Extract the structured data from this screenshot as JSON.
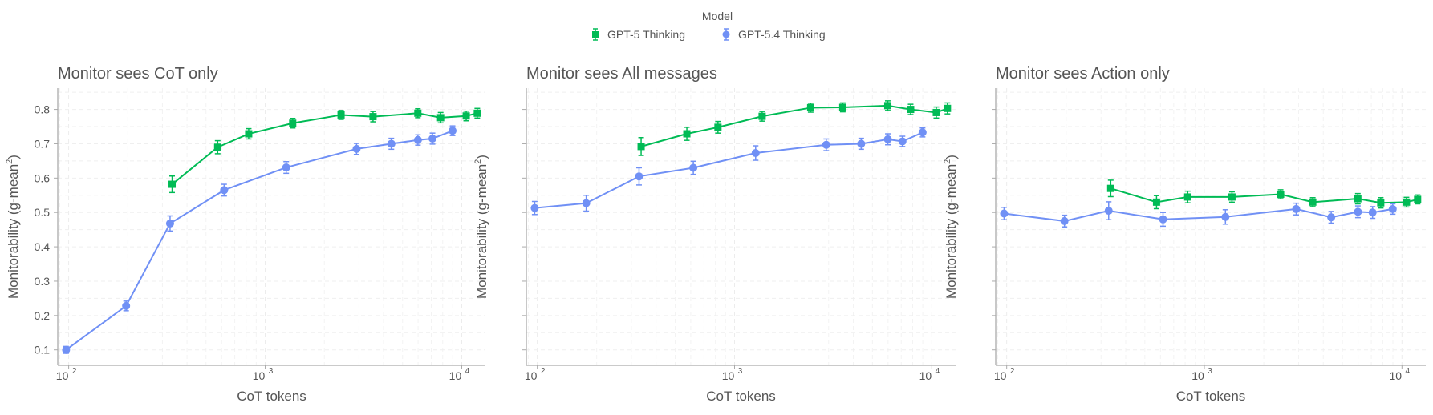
{
  "chart_data": {
    "type": "line",
    "legend": {
      "title": "Model",
      "placement": "top-center"
    },
    "series_meta": [
      {
        "name": "GPT-5 Thinking",
        "color": "#00bb55",
        "marker": "square"
      },
      {
        "name": "GPT-5.4 Thinking",
        "color": "#7090f5",
        "marker": "circle"
      }
    ],
    "xlabel": "CoT tokens",
    "ylabel": "Monitorability (g-mean",
    "ylabel_sup": "2",
    "ylabel_end": ")",
    "xscale": "log",
    "xlim": [
      88,
      13200
    ],
    "ylim": [
      0.055,
      0.862
    ],
    "xticks": [
      100,
      1000,
      10000
    ],
    "xtick_labels": [
      {
        "base": "10",
        "exp": "2"
      },
      {
        "base": "10",
        "exp": "3"
      },
      {
        "base": "10",
        "exp": "4"
      }
    ],
    "yticks": [
      0.1,
      0.2,
      0.3,
      0.4,
      0.5,
      0.6,
      0.7,
      0.8
    ],
    "ytick_labels": [
      "0.1",
      "0.2",
      "0.3",
      "0.4",
      "0.5",
      "0.6",
      "0.7",
      "0.8"
    ],
    "grid": true,
    "panels": [
      {
        "title": "Monitor sees CoT only",
        "series": [
          {
            "name": "GPT-5 Thinking",
            "x": [
              336,
              573,
              824,
              1380,
              2432,
              3537,
              5980,
              7810,
              10540,
              12000
            ],
            "y": [
              0.582,
              0.69,
              0.729,
              0.76,
              0.784,
              0.779,
              0.789,
              0.776,
              0.781,
              0.789
            ],
            "err": [
              0.024,
              0.019,
              0.015,
              0.014,
              0.013,
              0.015,
              0.013,
              0.015,
              0.014,
              0.014
            ]
          },
          {
            "name": "GPT-5.4 Thinking",
            "x": [
              97,
              196,
              328,
              618,
              1279,
              2917,
              4385,
              5986,
              7100,
              8980
            ],
            "y": [
              0.1,
              0.228,
              0.468,
              0.565,
              0.631,
              0.685,
              0.7,
              0.711,
              0.715,
              0.738
            ],
            "err": [
              0.01,
              0.014,
              0.022,
              0.017,
              0.017,
              0.016,
              0.016,
              0.015,
              0.016,
              0.014
            ]
          }
        ]
      },
      {
        "title": "Monitor sees All messages",
        "series": [
          {
            "name": "GPT-5 Thinking",
            "x": [
              336,
              573,
              824,
              1380,
              2432,
              3537,
              5980,
              7810,
              10540,
              12000
            ],
            "y": [
              0.692,
              0.729,
              0.748,
              0.78,
              0.805,
              0.806,
              0.811,
              0.8,
              0.791,
              0.803
            ],
            "err": [
              0.026,
              0.019,
              0.017,
              0.014,
              0.013,
              0.013,
              0.014,
              0.015,
              0.016,
              0.016
            ]
          },
          {
            "name": "GPT-5.4 Thinking",
            "x": [
              97,
              177,
              328,
              618,
              1279,
              2917,
              4385,
              5986,
              7100,
              8980
            ],
            "y": [
              0.513,
              0.527,
              0.605,
              0.63,
              0.673,
              0.697,
              0.7,
              0.713,
              0.707,
              0.733
            ],
            "err": [
              0.019,
              0.023,
              0.025,
              0.019,
              0.021,
              0.017,
              0.016,
              0.016,
              0.015,
              0.013
            ]
          }
        ]
      },
      {
        "title": "Monitor sees Action only",
        "series": [
          {
            "name": "GPT-5 Thinking",
            "x": [
              336,
              573,
              824,
              1380,
              2432,
              3537,
              5980,
              7810,
              10540,
              12000
            ],
            "y": [
              0.57,
              0.53,
              0.545,
              0.545,
              0.553,
              0.53,
              0.54,
              0.528,
              0.53,
              0.538
            ],
            "err": [
              0.024,
              0.019,
              0.017,
              0.015,
              0.013,
              0.013,
              0.015,
              0.015,
              0.014,
              0.013
            ]
          },
          {
            "name": "GPT-5.4 Thinking",
            "x": [
              97,
              196,
              328,
              618,
              1279,
              2917,
              4385,
              5986,
              7100,
              8980
            ],
            "y": [
              0.497,
              0.475,
              0.505,
              0.48,
              0.487,
              0.51,
              0.486,
              0.502,
              0.5,
              0.51
            ],
            "err": [
              0.018,
              0.017,
              0.026,
              0.02,
              0.021,
              0.017,
              0.017,
              0.017,
              0.017,
              0.015
            ]
          }
        ]
      }
    ]
  }
}
